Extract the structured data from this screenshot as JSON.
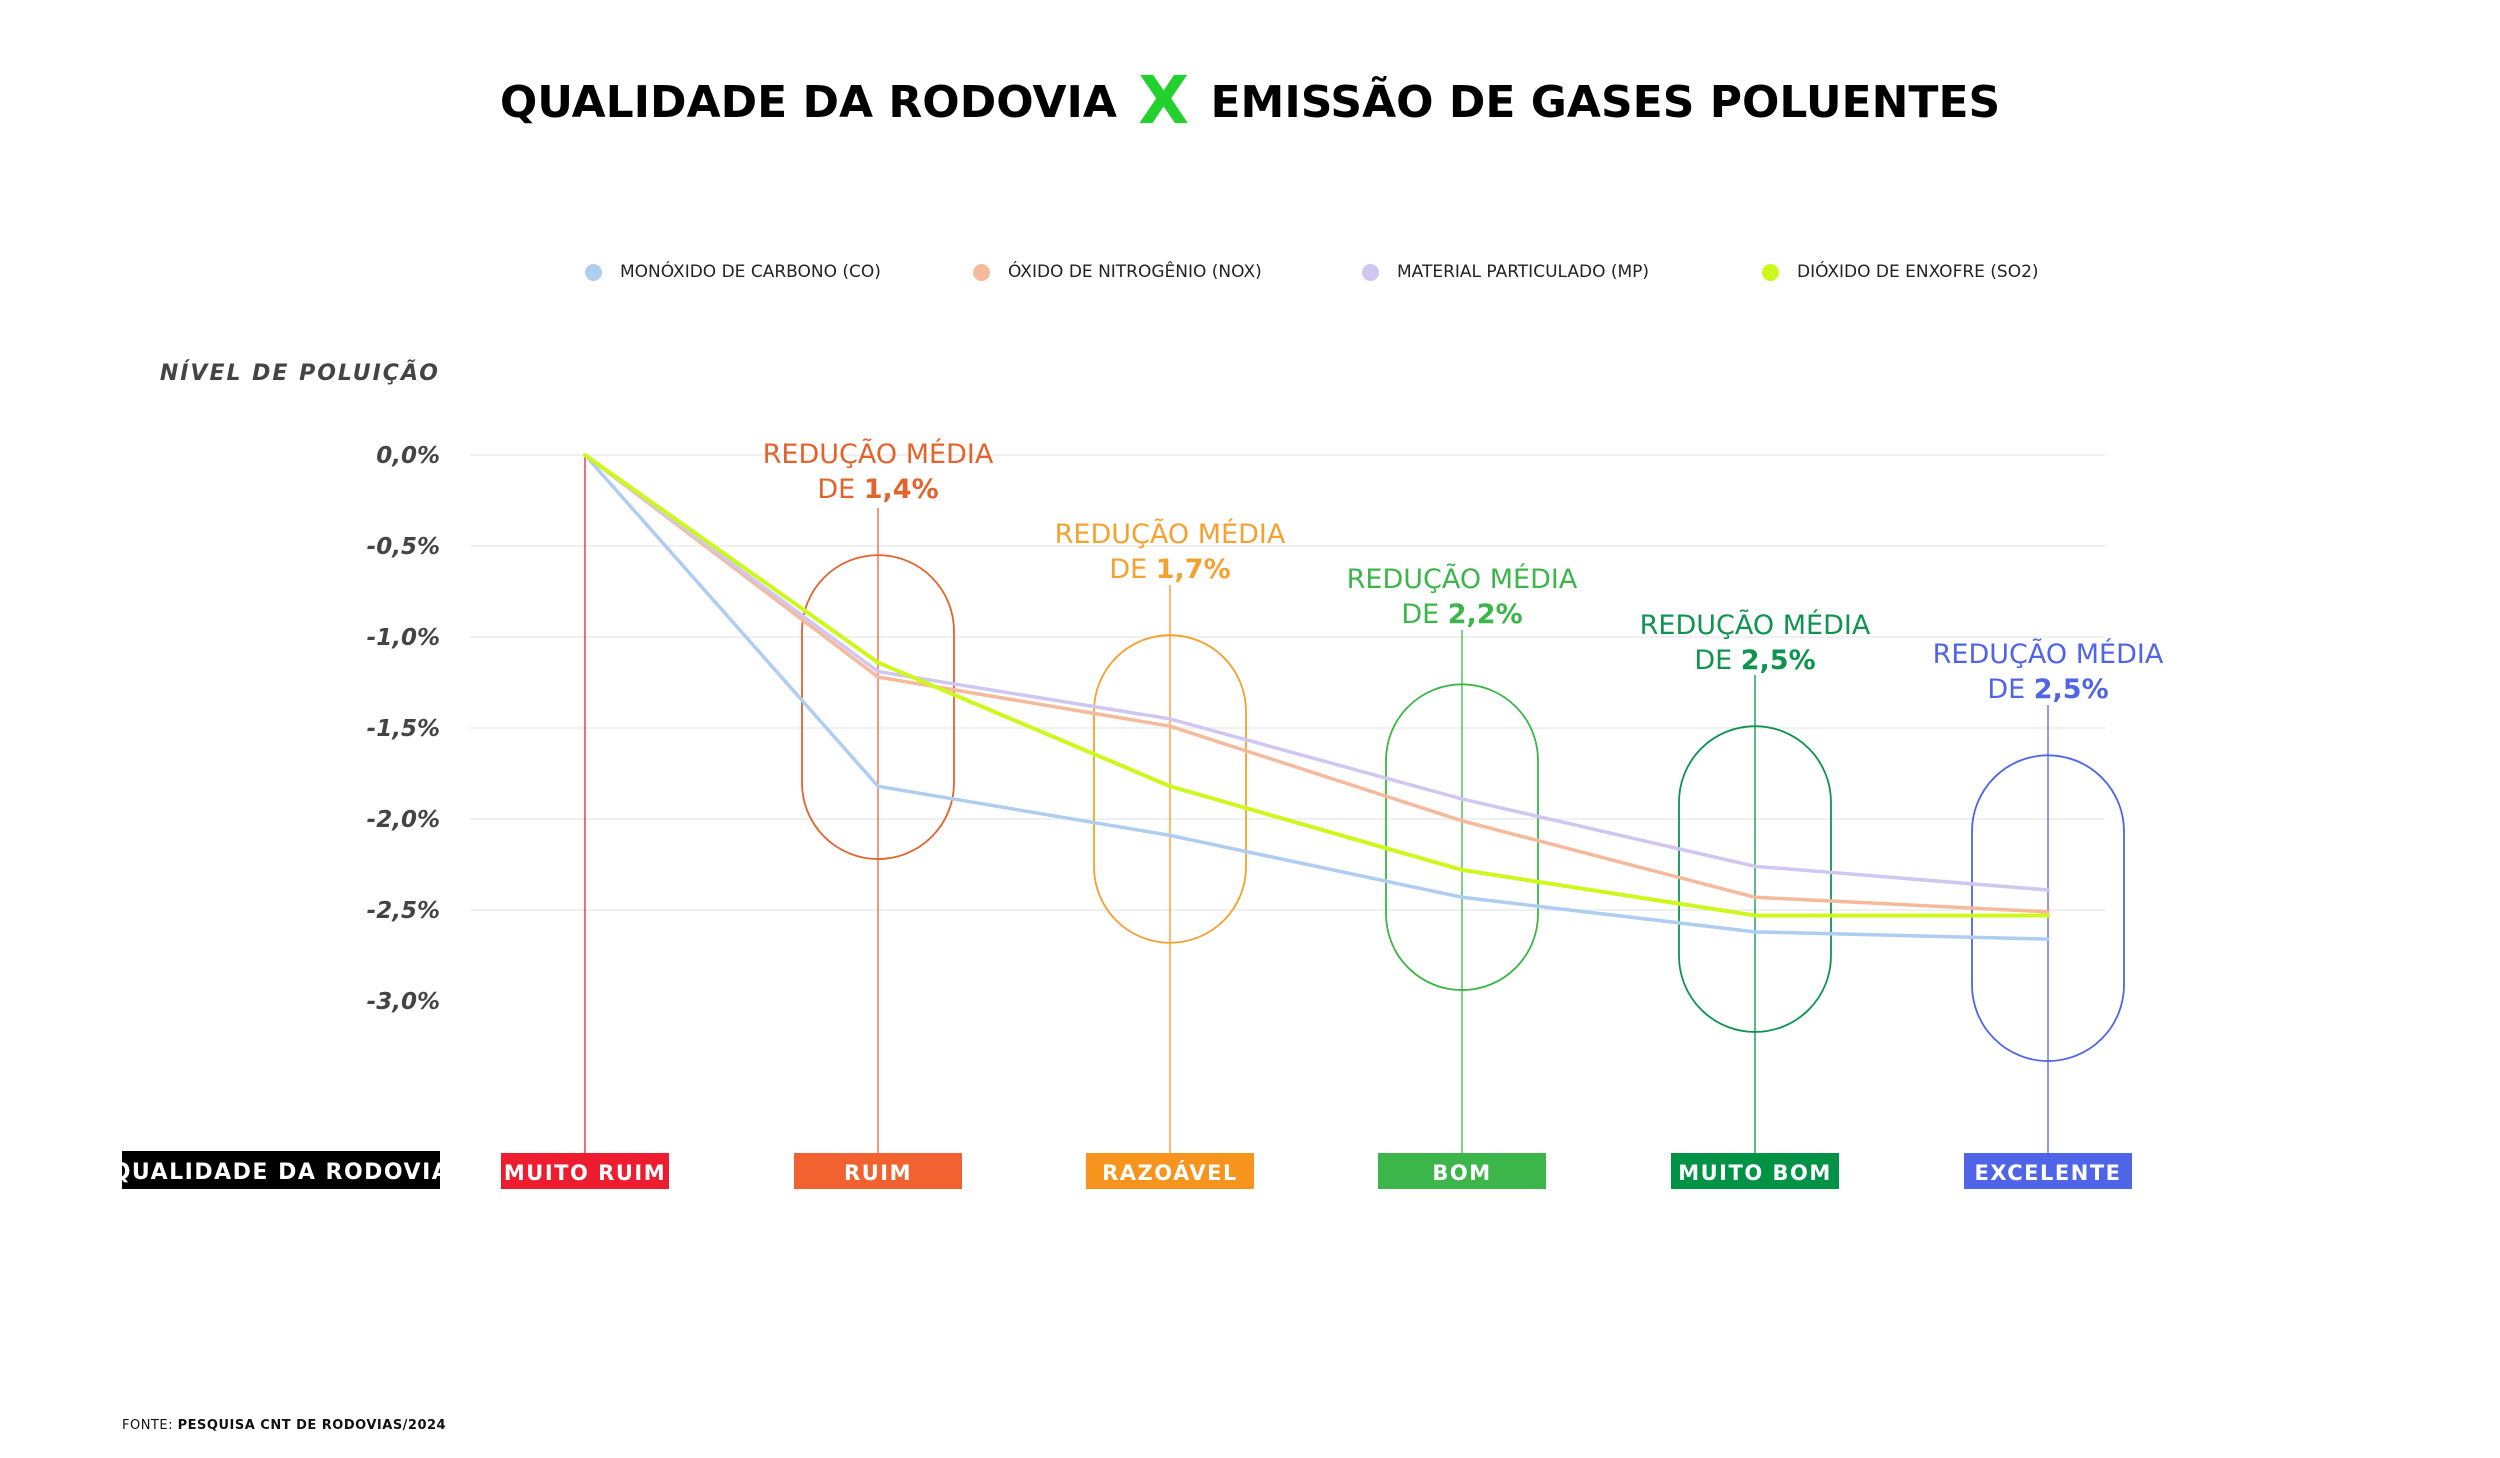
{
  "title": {
    "part1": "QUALIDADE DA RODOVIA",
    "x": "X",
    "part2": "EMISSÃO DE GASES POLUENTES"
  },
  "colors": {
    "grid": "#ececec",
    "axis_text": "#444444"
  },
  "chart_data": {
    "type": "line",
    "ylabel": "NÍVEL DE POLUIÇÃO",
    "xlabel": "QUALIDADE DA RODOVIA",
    "ylim": [
      -3.0,
      0.0
    ],
    "yticks": [
      0.0,
      -0.5,
      -1.0,
      -1.5,
      -2.0,
      -2.5,
      -3.0
    ],
    "ytick_labels": [
      "0,0%",
      "-0,5%",
      "-1,0%",
      "-1,5%",
      "-2,0%",
      "-2,5%",
      "-3,0%"
    ],
    "grid": true,
    "legend_position": "top-center",
    "categories": [
      "MUITO RUIM",
      "RUIM",
      "RAZOÁVEL",
      "BOM",
      "MUITO BOM",
      "EXCELENTE"
    ],
    "category_colors": [
      "#ed1c2e",
      "#f26130",
      "#f7941d",
      "#3cb54a",
      "#009245",
      "#4f64e6"
    ],
    "series": [
      {
        "name": "MONÓXIDO DE CARBONO (CO)",
        "color": "#aecdf1",
        "values": [
          0.0,
          -1.82,
          -2.09,
          -2.43,
          -2.62,
          -2.66
        ]
      },
      {
        "name": "ÓXIDO DE NITROGÊNIO (NOX)",
        "color": "#f6b99c",
        "values": [
          0.0,
          -1.22,
          -1.49,
          -2.01,
          -2.43,
          -2.51
        ]
      },
      {
        "name": "MATERIAL PARTICULADO (MP)",
        "color": "#cfc6f2",
        "values": [
          0.0,
          -1.19,
          -1.45,
          -1.89,
          -2.26,
          -2.39
        ]
      },
      {
        "name": "DIÓXIDO DE ENXOFRE (SO2)",
        "color": "#cdf81c",
        "values": [
          0.0,
          -1.14,
          -1.82,
          -2.28,
          -2.53,
          -2.53
        ]
      }
    ],
    "annotations": [
      {
        "category": "RUIM",
        "line1": "REDUÇÃO MÉDIA",
        "line2_prefix": "DE ",
        "value": "1,4%",
        "color": "#e2632b"
      },
      {
        "category": "RAZOÁVEL",
        "line1": "REDUÇÃO MÉDIA",
        "line2_prefix": "DE ",
        "value": "1,7%",
        "color": "#f4a130"
      },
      {
        "category": "BOM",
        "line1": "REDUÇÃO MÉDIA",
        "line2_prefix": "DE ",
        "value": "2,2%",
        "color": "#3cb54a"
      },
      {
        "category": "MUITO BOM",
        "line1": "REDUÇÃO MÉDIA",
        "line2_prefix": "DE ",
        "value": "2,5%",
        "color": "#0f9450"
      },
      {
        "category": "EXCELENTE",
        "line1": "REDUÇÃO MÉDIA",
        "line2_prefix": "DE ",
        "value": "2,5%",
        "color": "#4f64e6"
      }
    ]
  },
  "source": {
    "prefix": "FONTE:",
    "text": "PESQUISA CNT DE RODOVIAS/2024"
  }
}
